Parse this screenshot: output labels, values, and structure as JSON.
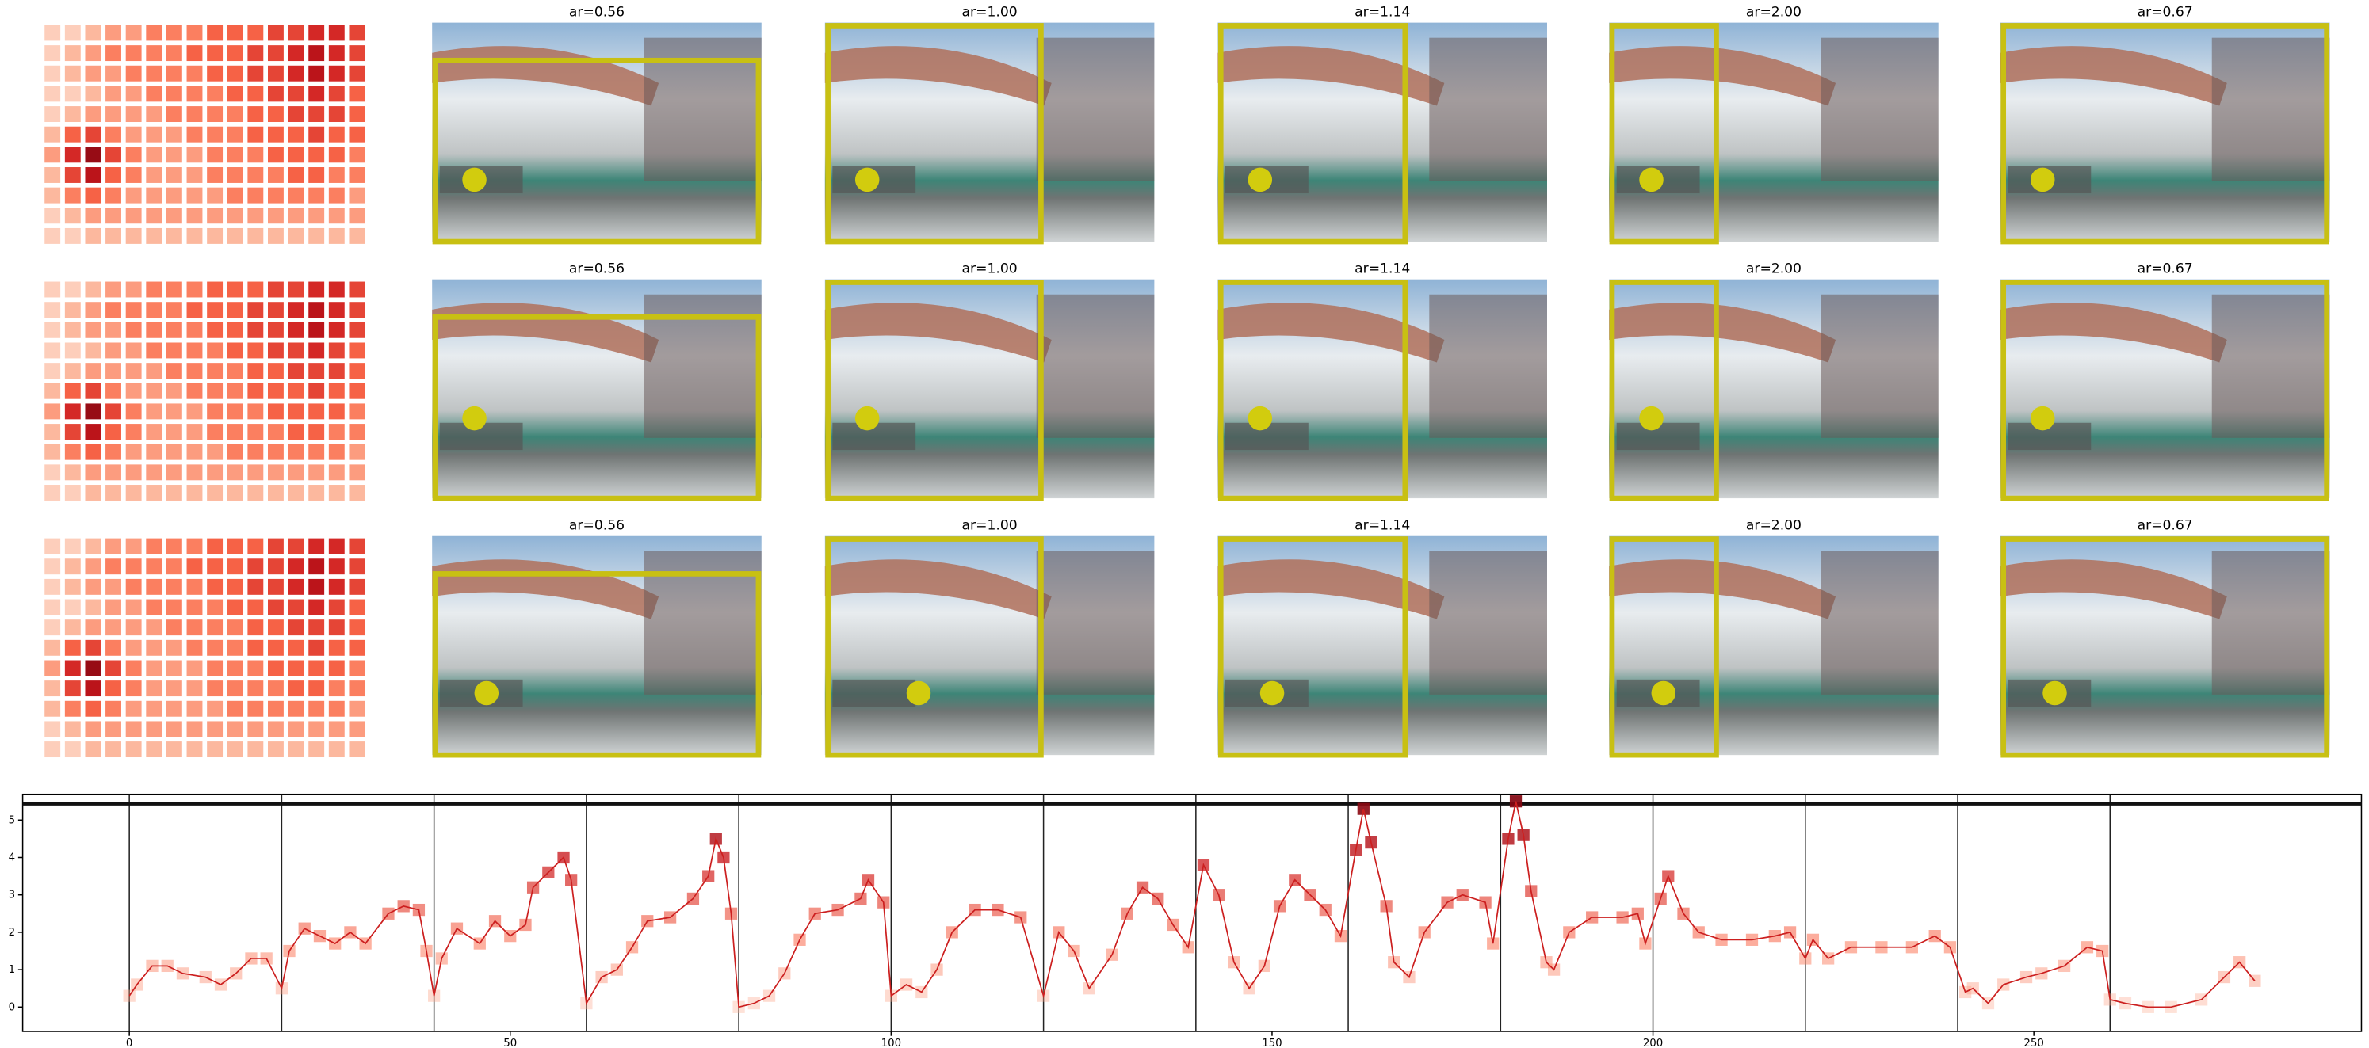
{
  "panels": [
    [
      "ar=0.56",
      "ar=1.00",
      "ar=1.14",
      "ar=2.00",
      "ar=0.67"
    ],
    [
      "ar=0.56",
      "ar=1.00",
      "ar=1.14",
      "ar=2.00",
      "ar=0.67"
    ],
    [
      "ar=0.56",
      "ar=1.00",
      "ar=1.14",
      "ar=2.00",
      "ar=0.67"
    ]
  ],
  "chart_data": [
    {
      "type": "heatmap",
      "colormap": "Reds",
      "values": [
        [
          1,
          1,
          2,
          3,
          3,
          4,
          4,
          4,
          5,
          5,
          5,
          6,
          6,
          7,
          7,
          6
        ],
        [
          1,
          2,
          3,
          4,
          4,
          4,
          4,
          5,
          5,
          5,
          6,
          6,
          7,
          8,
          7,
          6
        ],
        [
          1,
          2,
          3,
          3,
          4,
          4,
          4,
          4,
          5,
          5,
          6,
          6,
          7,
          8,
          7,
          6
        ],
        [
          1,
          1,
          2,
          3,
          3,
          4,
          4,
          4,
          4,
          5,
          5,
          6,
          6,
          7,
          6,
          5
        ],
        [
          1,
          2,
          3,
          3,
          3,
          3,
          4,
          4,
          4,
          4,
          5,
          5,
          6,
          6,
          6,
          5
        ],
        [
          2,
          5,
          6,
          4,
          3,
          3,
          3,
          4,
          4,
          4,
          5,
          5,
          5,
          6,
          5,
          5
        ],
        [
          3,
          7,
          9,
          6,
          4,
          3,
          3,
          3,
          4,
          4,
          4,
          5,
          5,
          5,
          5,
          4
        ],
        [
          2,
          6,
          8,
          5,
          4,
          3,
          3,
          3,
          4,
          4,
          4,
          4,
          5,
          5,
          4,
          4
        ],
        [
          2,
          4,
          5,
          4,
          3,
          3,
          3,
          3,
          3,
          4,
          4,
          4,
          4,
          4,
          4,
          3
        ],
        [
          1,
          2,
          3,
          3,
          3,
          3,
          3,
          3,
          3,
          3,
          3,
          3,
          3,
          3,
          3,
          3
        ],
        [
          1,
          1,
          2,
          2,
          2,
          2,
          2,
          2,
          2,
          2,
          2,
          2,
          2,
          2,
          2,
          2
        ]
      ]
    },
    {
      "type": "line",
      "color": "#cc1f1f",
      "marker": "square",
      "colormap": "Reds",
      "x": [
        0,
        1,
        3,
        5,
        7,
        10,
        12,
        14,
        16,
        18,
        20,
        21,
        23,
        25,
        27,
        29,
        31,
        34,
        36,
        38,
        39,
        40,
        41,
        43,
        46,
        48,
        50,
        52,
        53,
        55,
        57,
        58,
        60,
        62,
        64,
        66,
        68,
        71,
        74,
        76,
        77,
        78,
        79,
        80,
        82,
        84,
        86,
        88,
        90,
        93,
        96,
        97,
        99,
        100,
        102,
        104,
        106,
        108,
        111,
        114,
        117,
        120,
        122,
        124,
        126,
        129,
        131,
        133,
        135,
        137,
        139,
        141,
        143,
        145,
        147,
        149,
        151,
        153,
        155,
        157,
        159,
        161,
        162,
        163,
        165,
        166,
        168,
        170,
        173,
        175,
        178,
        179,
        181,
        182,
        183,
        184,
        186,
        187,
        189,
        192,
        196,
        198,
        199,
        201,
        202,
        204,
        206,
        209,
        213,
        216,
        218,
        220,
        221,
        223,
        226,
        230,
        234,
        237,
        239,
        241,
        242,
        244,
        246,
        249,
        251,
        254,
        257,
        259,
        260,
        262,
        265,
        268,
        272,
        275,
        277,
        279
      ],
      "values": [
        0.3,
        0.6,
        1.1,
        1.1,
        0.9,
        0.8,
        0.6,
        0.9,
        1.3,
        1.3,
        0.5,
        1.5,
        2.1,
        1.9,
        1.7,
        2.0,
        1.7,
        2.5,
        2.7,
        2.6,
        1.5,
        0.3,
        1.3,
        2.1,
        1.7,
        2.3,
        1.9,
        2.2,
        3.2,
        3.6,
        4.0,
        3.4,
        0.1,
        0.8,
        1.0,
        1.6,
        2.3,
        2.4,
        2.9,
        3.5,
        4.5,
        4.0,
        2.5,
        0.0,
        0.1,
        0.3,
        0.9,
        1.8,
        2.5,
        2.6,
        2.9,
        3.4,
        2.8,
        0.3,
        0.6,
        0.4,
        1.0,
        2.0,
        2.6,
        2.6,
        2.4,
        0.3,
        2.0,
        1.5,
        0.5,
        1.4,
        2.5,
        3.2,
        2.9,
        2.2,
        1.6,
        3.8,
        3.0,
        1.2,
        0.5,
        1.1,
        2.7,
        3.4,
        3.0,
        2.6,
        1.9,
        4.2,
        5.3,
        4.4,
        2.7,
        1.2,
        0.8,
        2.0,
        2.8,
        3.0,
        2.8,
        1.7,
        4.5,
        5.5,
        4.6,
        3.1,
        1.2,
        1.0,
        2.0,
        2.4,
        2.4,
        2.5,
        1.7,
        2.9,
        3.5,
        2.5,
        2.0,
        1.8,
        1.8,
        1.9,
        2.0,
        1.3,
        1.8,
        1.3,
        1.6,
        1.6,
        1.6,
        1.9,
        1.6,
        0.4,
        0.5,
        0.1,
        0.6,
        0.8,
        0.9,
        1.1,
        1.6,
        1.5,
        0.2,
        0.1,
        0.0,
        0.0,
        0.2,
        0.8,
        1.2,
        0.7
      ],
      "xlim": [
        -14,
        293
      ],
      "ylim": [
        -0.65,
        5.69
      ],
      "xticks": [
        0,
        50,
        100,
        150,
        200,
        250
      ],
      "yticks": [
        0,
        1,
        2,
        3,
        4,
        5
      ],
      "vlines": [
        0,
        20,
        40,
        60,
        80,
        100,
        120,
        140,
        160,
        180,
        200,
        220,
        240,
        260
      ],
      "hline": 5.44
    }
  ]
}
